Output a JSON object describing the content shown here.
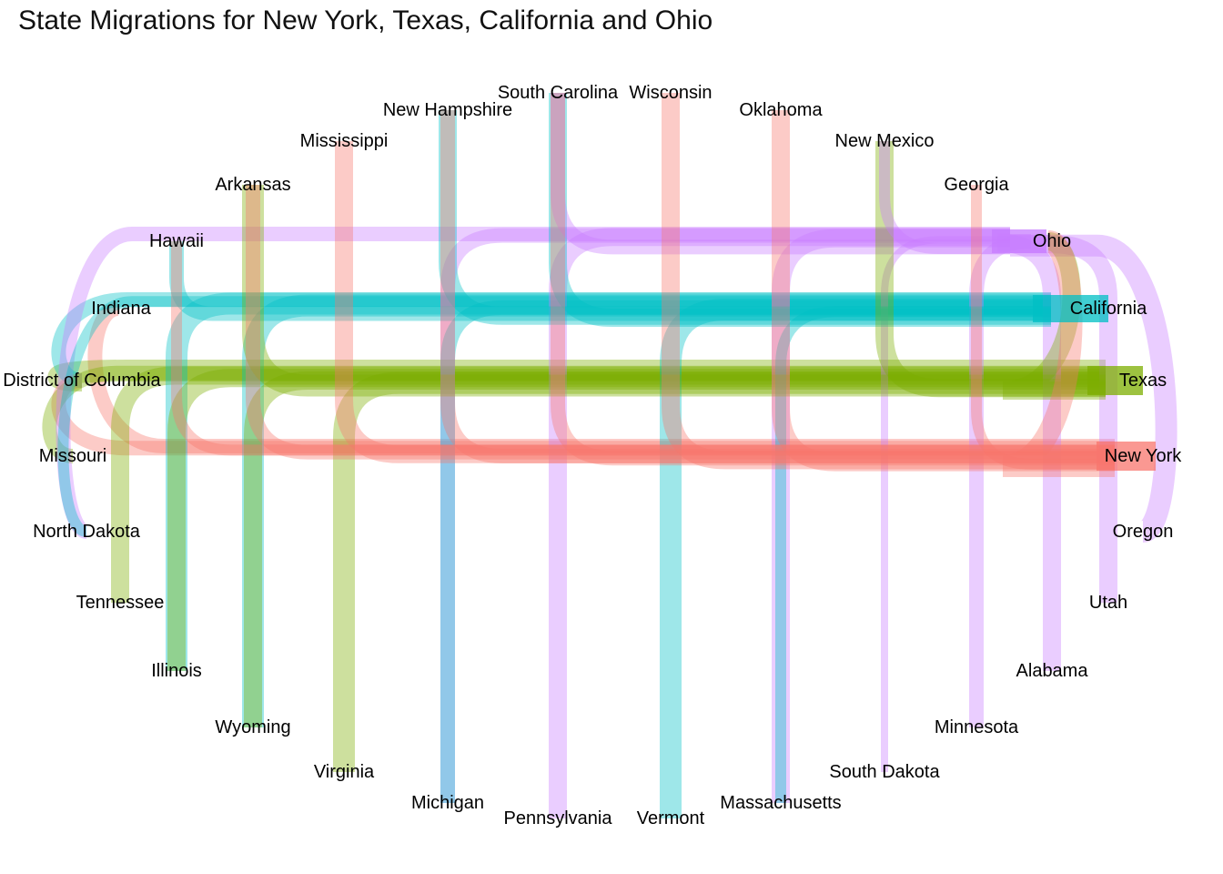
{
  "chart_data": {
    "type": "flow",
    "title": "State Migrations for New York, Texas, California and Ohio",
    "targets": [
      {
        "name": "California",
        "color": "#00BFC4"
      },
      {
        "name": "Texas",
        "color": "#7CAE00"
      },
      {
        "name": "New York",
        "color": "#F8766D"
      },
      {
        "name": "Ohio",
        "color": "#C77CFF"
      }
    ],
    "states": [
      "Indiana",
      "District of Columbia",
      "Missouri",
      "North Dakota",
      "Tennessee",
      "Illinois",
      "Wyoming",
      "Virginia",
      "Michigan",
      "Pennsylvania",
      "Vermont",
      "Massachusetts",
      "South Dakota",
      "Minnesota",
      "Alabama",
      "Utah",
      "Oregon",
      "Hawaii",
      "Arkansas",
      "Mississippi",
      "New Hampshire",
      "South Carolina",
      "Wisconsin",
      "Oklahoma",
      "New Mexico",
      "Georgia",
      "Ohio",
      "California",
      "Texas",
      "New York"
    ],
    "flows": [
      {
        "from": "Indiana",
        "to": "New York",
        "value": 4
      },
      {
        "from": "District of Columbia",
        "to": "Texas",
        "value": 6
      },
      {
        "from": "District of Columbia",
        "to": "California",
        "value": 4
      },
      {
        "from": "District of Columbia",
        "to": "New York",
        "value": 4
      },
      {
        "from": "Missouri",
        "to": "Texas",
        "value": 4
      },
      {
        "from": "North Dakota",
        "to": "Ohio",
        "value": 4
      },
      {
        "from": "North Dakota",
        "to": "California",
        "value": 3
      },
      {
        "from": "Tennessee",
        "to": "Texas",
        "value": 5
      },
      {
        "from": "Illinois",
        "to": "California",
        "value": 6
      },
      {
        "from": "Illinois",
        "to": "Texas",
        "value": 5
      },
      {
        "from": "Wyoming",
        "to": "California",
        "value": 6
      },
      {
        "from": "Wyoming",
        "to": "Texas",
        "value": 5
      },
      {
        "from": "Virginia",
        "to": "Texas",
        "value": 6
      },
      {
        "from": "Michigan",
        "to": "Ohio",
        "value": 4
      },
      {
        "from": "Michigan",
        "to": "California",
        "value": 4
      },
      {
        "from": "Pennsylvania",
        "to": "Ohio",
        "value": 5
      },
      {
        "from": "Vermont",
        "to": "California",
        "value": 6
      },
      {
        "from": "Massachusetts",
        "to": "Ohio",
        "value": 5
      },
      {
        "from": "Massachusetts",
        "to": "California",
        "value": 3
      },
      {
        "from": "South Dakota",
        "to": "Ohio",
        "value": 2
      },
      {
        "from": "Minnesota",
        "to": "Ohio",
        "value": 4
      },
      {
        "from": "Alabama",
        "to": "Ohio",
        "value": 5
      },
      {
        "from": "Utah",
        "to": "Ohio",
        "value": 5
      },
      {
        "from": "Oregon",
        "to": "Ohio",
        "value": 6
      },
      {
        "from": "Hawaii",
        "to": "California",
        "value": 4
      },
      {
        "from": "Hawaii",
        "to": "New York",
        "value": 3
      },
      {
        "from": "Arkansas",
        "to": "Texas",
        "value": 6
      },
      {
        "from": "Arkansas",
        "to": "New York",
        "value": 4
      },
      {
        "from": "Mississippi",
        "to": "New York",
        "value": 5
      },
      {
        "from": "New Hampshire",
        "to": "California",
        "value": 5
      },
      {
        "from": "New Hampshire",
        "to": "New York",
        "value": 4
      },
      {
        "from": "South Carolina",
        "to": "California",
        "value": 5
      },
      {
        "from": "South Carolina",
        "to": "Ohio",
        "value": 4
      },
      {
        "from": "South Carolina",
        "to": "New York",
        "value": 4
      },
      {
        "from": "Wisconsin",
        "to": "New York",
        "value": 5
      },
      {
        "from": "Oklahoma",
        "to": "New York",
        "value": 5
      },
      {
        "from": "New Mexico",
        "to": "Texas",
        "value": 5
      },
      {
        "from": "New Mexico",
        "to": "Ohio",
        "value": 3
      },
      {
        "from": "Georgia",
        "to": "New York",
        "value": 3
      },
      {
        "from": "Ohio",
        "to": "Texas",
        "value": 5
      },
      {
        "from": "Ohio",
        "to": "New York",
        "value": 6
      }
    ]
  }
}
